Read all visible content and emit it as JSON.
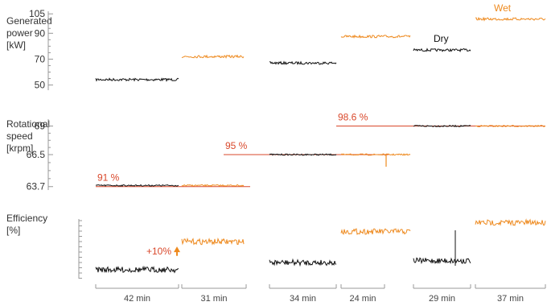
{
  "colors": {
    "dry": "#111111",
    "wet": "#ee8a1f",
    "annotation": "#d9482b",
    "axis": "#999999",
    "text": "#333333"
  },
  "chart_data": [
    {
      "type": "line",
      "panel": "power",
      "ylabel": [
        "Generated",
        "power",
        "[kW]"
      ],
      "yticks": [
        50,
        70,
        90,
        105
      ],
      "ylim": [
        46,
        107
      ],
      "series": [
        {
          "name": "Dry",
          "condition": "dry",
          "segments": [
            {
              "x": [
                0,
                1
              ],
              "y": 54.2
            },
            {
              "x": [
                3,
                4
              ],
              "y": 67.0
            },
            {
              "x": [
                6,
                7
              ],
              "y": 77.0
            }
          ]
        },
        {
          "name": "Wet",
          "condition": "wet",
          "segments": [
            {
              "x": [
                1,
                2
              ],
              "y": 72.0
            },
            {
              "x": [
                4,
                5
              ],
              "y": 87.5
            },
            {
              "x": [
                7,
                8
              ],
              "y": 101.0
            }
          ]
        }
      ]
    },
    {
      "type": "line",
      "panel": "speed",
      "ylabel": [
        "Rotational",
        "speed",
        "[krpm]"
      ],
      "yticks": [
        63.7,
        66.5,
        69
      ],
      "ylim": [
        63.4,
        69.6
      ],
      "series": [
        {
          "condition": "dry",
          "segments": [
            {
              "x": [
                0,
                1
              ],
              "y": 63.8
            },
            {
              "x": [
                3,
                4
              ],
              "y": 66.5
            },
            {
              "x": [
                6,
                7
              ],
              "y": 69.0
            }
          ]
        },
        {
          "condition": "wet",
          "segments": [
            {
              "x": [
                1,
                2
              ],
              "y": 63.8
            },
            {
              "x": [
                4,
                5
              ],
              "y": 66.5
            },
            {
              "x": [
                7,
                8
              ],
              "y": 69.0
            }
          ]
        }
      ],
      "annotations": [
        {
          "label": "91 %",
          "x": [
            0,
            2.1
          ],
          "y": 63.7
        },
        {
          "label": "95 %",
          "x": [
            2.6,
            5.3
          ],
          "y": 66.5
        },
        {
          "label": "98.6 %",
          "x": [
            5.55,
            8
          ],
          "y": 69.0
        }
      ]
    },
    {
      "type": "line",
      "panel": "efficiency",
      "ylabel": [
        "Efficiency",
        "[%]"
      ],
      "ylim": [
        0,
        1
      ],
      "series": [
        {
          "condition": "dry",
          "segments": [
            {
              "x": [
                0,
                1
              ],
              "y": 0.15
            },
            {
              "x": [
                3,
                4
              ],
              "y": 0.27
            },
            {
              "x": [
                6,
                7
              ],
              "y": 0.3
            }
          ]
        },
        {
          "condition": "wet",
          "segments": [
            {
              "x": [
                1,
                2
              ],
              "y": 0.62
            },
            {
              "x": [
                4,
                5
              ],
              "y": 0.79
            },
            {
              "x": [
                7,
                8
              ],
              "y": 0.94
            }
          ]
        }
      ],
      "annotations": [
        {
          "label": "+10%",
          "x": 1,
          "y_from": 0.22,
          "y_to": 0.62
        }
      ]
    }
  ],
  "durations": [
    "42 min",
    "31 min",
    "34 min",
    "24 min",
    "29 min",
    "37 min"
  ]
}
